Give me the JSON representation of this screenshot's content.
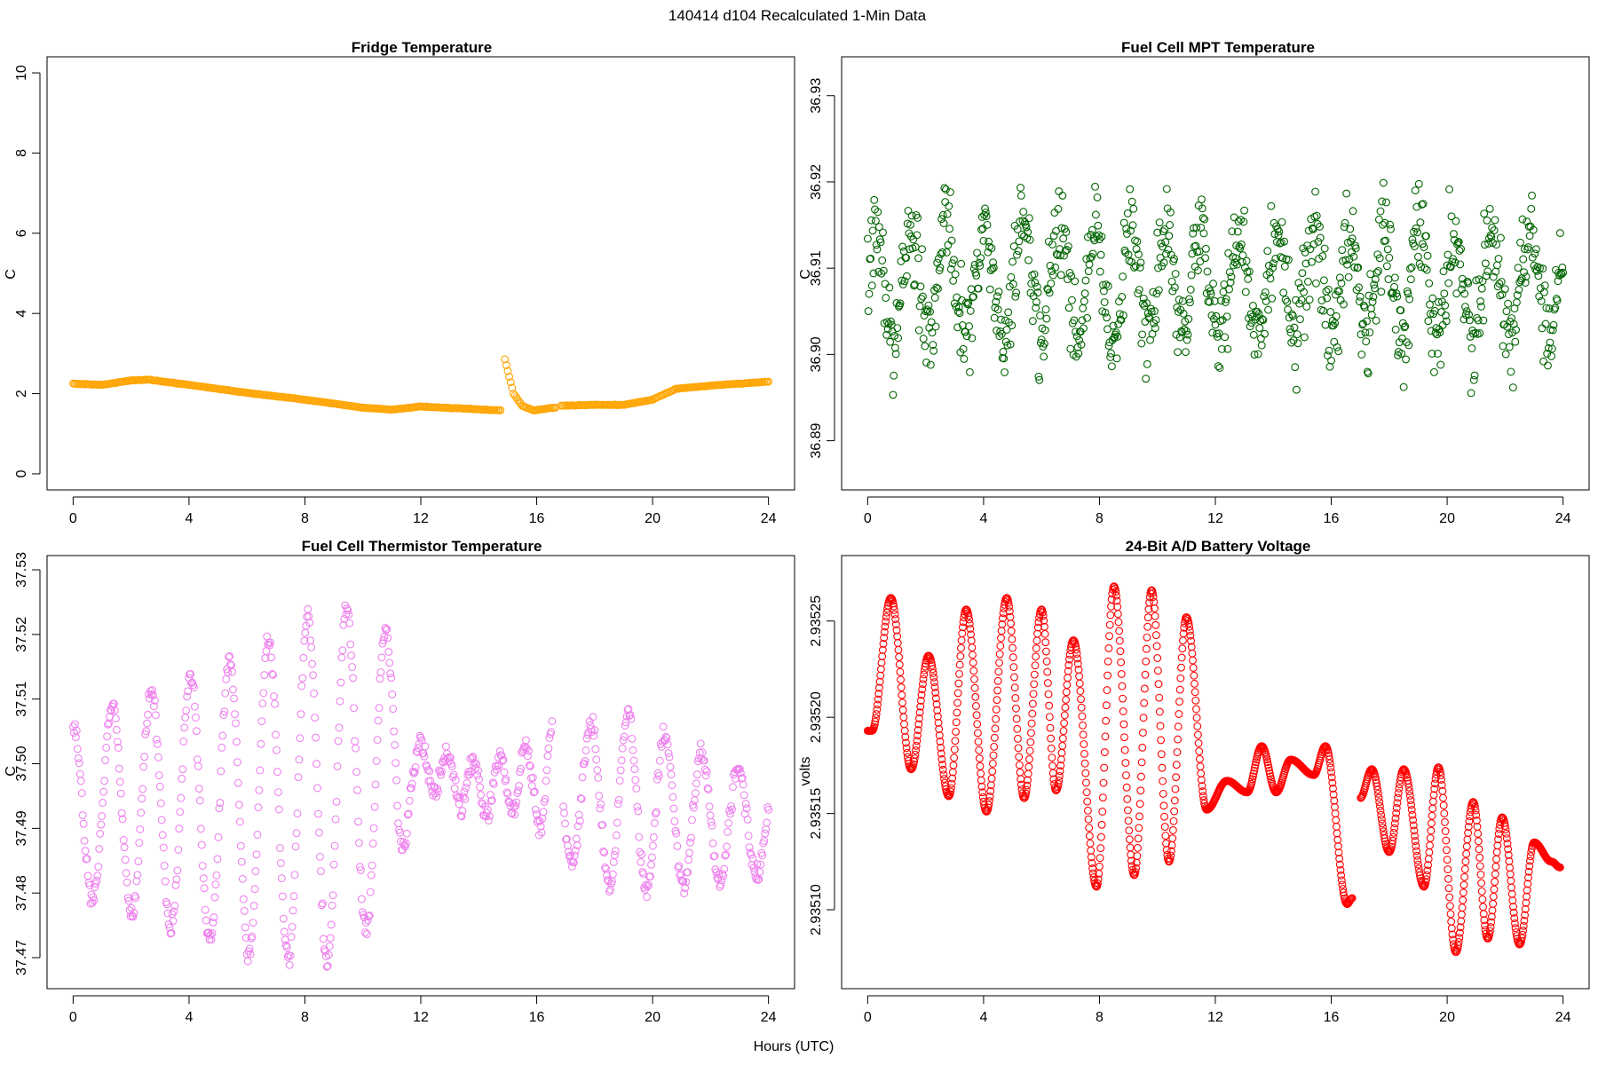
{
  "figure": {
    "title": "140414   d104   Recalculated 1-Min Data",
    "xlabel": "Hours (UTC)"
  },
  "chart_data": [
    {
      "type": "scatter",
      "title": "Fridge Temperature",
      "xlabel": "",
      "ylabel": "C",
      "xlim": [
        -0.9,
        24.9
      ],
      "ylim": [
        -0.4,
        10.4
      ],
      "xticks": [
        0,
        4,
        8,
        12,
        16,
        20,
        24
      ],
      "xtick_labels": [
        "0",
        "4",
        "8",
        "12",
        "16",
        "20",
        "24"
      ],
      "yticks": [
        0,
        2,
        4,
        6,
        8,
        10
      ],
      "ytick_labels": [
        "0",
        "2",
        "4",
        "6",
        "8",
        "10"
      ],
      "color": "#FFA500",
      "marker": "open-circle",
      "series_shape": {
        "x_start": 0,
        "x_end": 24,
        "step_hours": 0.05,
        "noise": 0.005,
        "gaps": [
          [
            14.78,
            14.9
          ],
          [
            16.68,
            16.85
          ]
        ],
        "segments": [
          {
            "x": [
              0,
              1,
              2,
              2.6,
              4,
              6,
              8,
              10,
              11,
              12,
              14.78
            ],
            "y": [
              2.25,
              2.22,
              2.33,
              2.35,
              2.22,
              2.02,
              1.85,
              1.65,
              1.6,
              1.68,
              1.58
            ]
          },
          {
            "x": [
              14.9,
              15.2,
              15.5,
              15.9,
              16.68
            ],
            "y": [
              2.85,
              2.0,
              1.7,
              1.58,
              1.66
            ]
          },
          {
            "x": [
              16.85,
              18,
              19,
              20,
              20.8,
              22,
              24
            ],
            "y": [
              1.7,
              1.72,
              1.72,
              1.85,
              2.12,
              2.2,
              2.3
            ]
          }
        ]
      }
    },
    {
      "type": "scatter",
      "title": "Fuel Cell MPT Temperature",
      "xlabel": "",
      "ylabel": "C",
      "xlim": [
        -0.9,
        24.9
      ],
      "ylim": [
        36.8843,
        36.9345
      ],
      "xticks": [
        0,
        4,
        8,
        12,
        16,
        20,
        24
      ],
      "xtick_labels": [
        "0",
        "4",
        "8",
        "12",
        "16",
        "20",
        "24"
      ],
      "yticks": [
        36.89,
        36.9,
        36.91,
        36.92,
        36.93
      ],
      "ytick_labels": [
        "36.89",
        "36.90",
        "36.91",
        "36.92",
        "36.93"
      ],
      "color": "#006400",
      "marker": "open-circle",
      "series_shape": {
        "x_start": 0,
        "x_end": 24,
        "step_hours": 0.025,
        "center": 36.908,
        "amplitude": 0.006,
        "period_hours": 1.25,
        "noise": 0.0045,
        "y_clip": [
          36.8855,
          36.934
        ]
      }
    },
    {
      "type": "scatter",
      "title": "Fuel Cell Thermistor Temperature",
      "xlabel": "",
      "ylabel": "C",
      "xlim": [
        -0.9,
        24.9
      ],
      "ylim": [
        37.4652,
        37.5322
      ],
      "xticks": [
        0,
        4,
        8,
        12,
        16,
        20,
        24
      ],
      "xtick_labels": [
        "0",
        "4",
        "8",
        "12",
        "16",
        "20",
        "24"
      ],
      "yticks": [
        37.47,
        37.48,
        37.49,
        37.5,
        37.51,
        37.52,
        37.53
      ],
      "ytick_labels": [
        "37.47",
        "37.48",
        "37.49",
        "37.50",
        "37.51",
        "37.52",
        "37.53"
      ],
      "color": "#EE82EE",
      "marker": "open-circle",
      "series_shape": {
        "x_start": 0,
        "x_end": 24,
        "step_hours": 0.03,
        "noise": 0.0012,
        "y_clip": [
          37.466,
          37.531
        ],
        "gaps": [
          [
            16.55,
            16.9
          ]
        ],
        "center_knots": {
          "x": [
            0,
            6,
            9,
            11.5,
            12,
            14,
            16,
            17,
            20,
            24
          ],
          "y": [
            37.493,
            37.494,
            37.497,
            37.5,
            37.5,
            37.496,
            37.498,
            37.495,
            37.493,
            37.49
          ]
        },
        "amplitude_knots": {
          "x": [
            0,
            4,
            7,
            9,
            11.2,
            11.8,
            15.8,
            16.4,
            17,
            19,
            24
          ],
          "y": [
            0.013,
            0.02,
            0.025,
            0.028,
            0.02,
            0.003,
            0.005,
            0.011,
            0.01,
            0.014,
            0.007
          ]
        },
        "period_knots": {
          "x": [
            0,
            11.5,
            12,
            16,
            17,
            24
          ],
          "y": [
            1.35,
            1.35,
            0.9,
            0.9,
            1.3,
            1.25
          ]
        }
      }
    },
    {
      "type": "scatter",
      "title": "24-Bit A/D Battery Voltage",
      "xlabel": "",
      "ylabel": "volts",
      "xlim": [
        -0.9,
        24.9
      ],
      "ylim": [
        2.935059,
        2.935284
      ],
      "xticks": [
        0,
        4,
        8,
        12,
        16,
        20,
        24
      ],
      "xtick_labels": [
        "0",
        "4",
        "8",
        "12",
        "16",
        "20",
        "24"
      ],
      "yticks": [
        2.9351,
        2.93515,
        2.9352,
        2.93525
      ],
      "ytick_labels": [
        "2.93510",
        "2.93515",
        "2.93520",
        "2.93525"
      ],
      "color": "#FF0000",
      "marker": "open-circle",
      "series_shape": {
        "x_start": 0,
        "x_end": 23.9,
        "step_hours": 0.02,
        "gaps": [
          [
            16.72,
            17.0
          ]
        ],
        "x_knots": [
          0,
          0.15,
          0.8,
          1.5,
          2.1,
          2.8,
          3.4,
          4.1,
          4.8,
          5.4,
          6.0,
          6.5,
          7.1,
          7.9,
          8.5,
          9.2,
          9.8,
          10.4,
          11.0,
          11.7,
          12.4,
          13.1,
          13.6,
          14.1,
          14.6,
          15.4,
          15.8,
          16.55,
          16.72,
          17.0,
          17.4,
          18.0,
          18.5,
          19.2,
          19.7,
          20.3,
          20.9,
          21.4,
          21.9,
          22.5,
          23.0,
          23.6,
          23.9
        ],
        "y_knots": [
          2.935193,
          2.935193,
          2.935262,
          2.935173,
          2.935232,
          2.935159,
          2.935256,
          2.935151,
          2.935262,
          2.935158,
          2.935256,
          2.935162,
          2.93524,
          2.935112,
          2.935268,
          2.935118,
          2.935266,
          2.935125,
          2.935252,
          2.935152,
          2.935167,
          2.935161,
          2.935185,
          2.935161,
          2.935178,
          2.93517,
          2.935185,
          2.935103,
          2.935106,
          2.935158,
          2.935173,
          2.93513,
          2.935173,
          2.935112,
          2.935174,
          2.935078,
          2.935156,
          2.935085,
          2.935148,
          2.935082,
          2.935135,
          2.935125,
          2.935122
        ]
      }
    }
  ]
}
